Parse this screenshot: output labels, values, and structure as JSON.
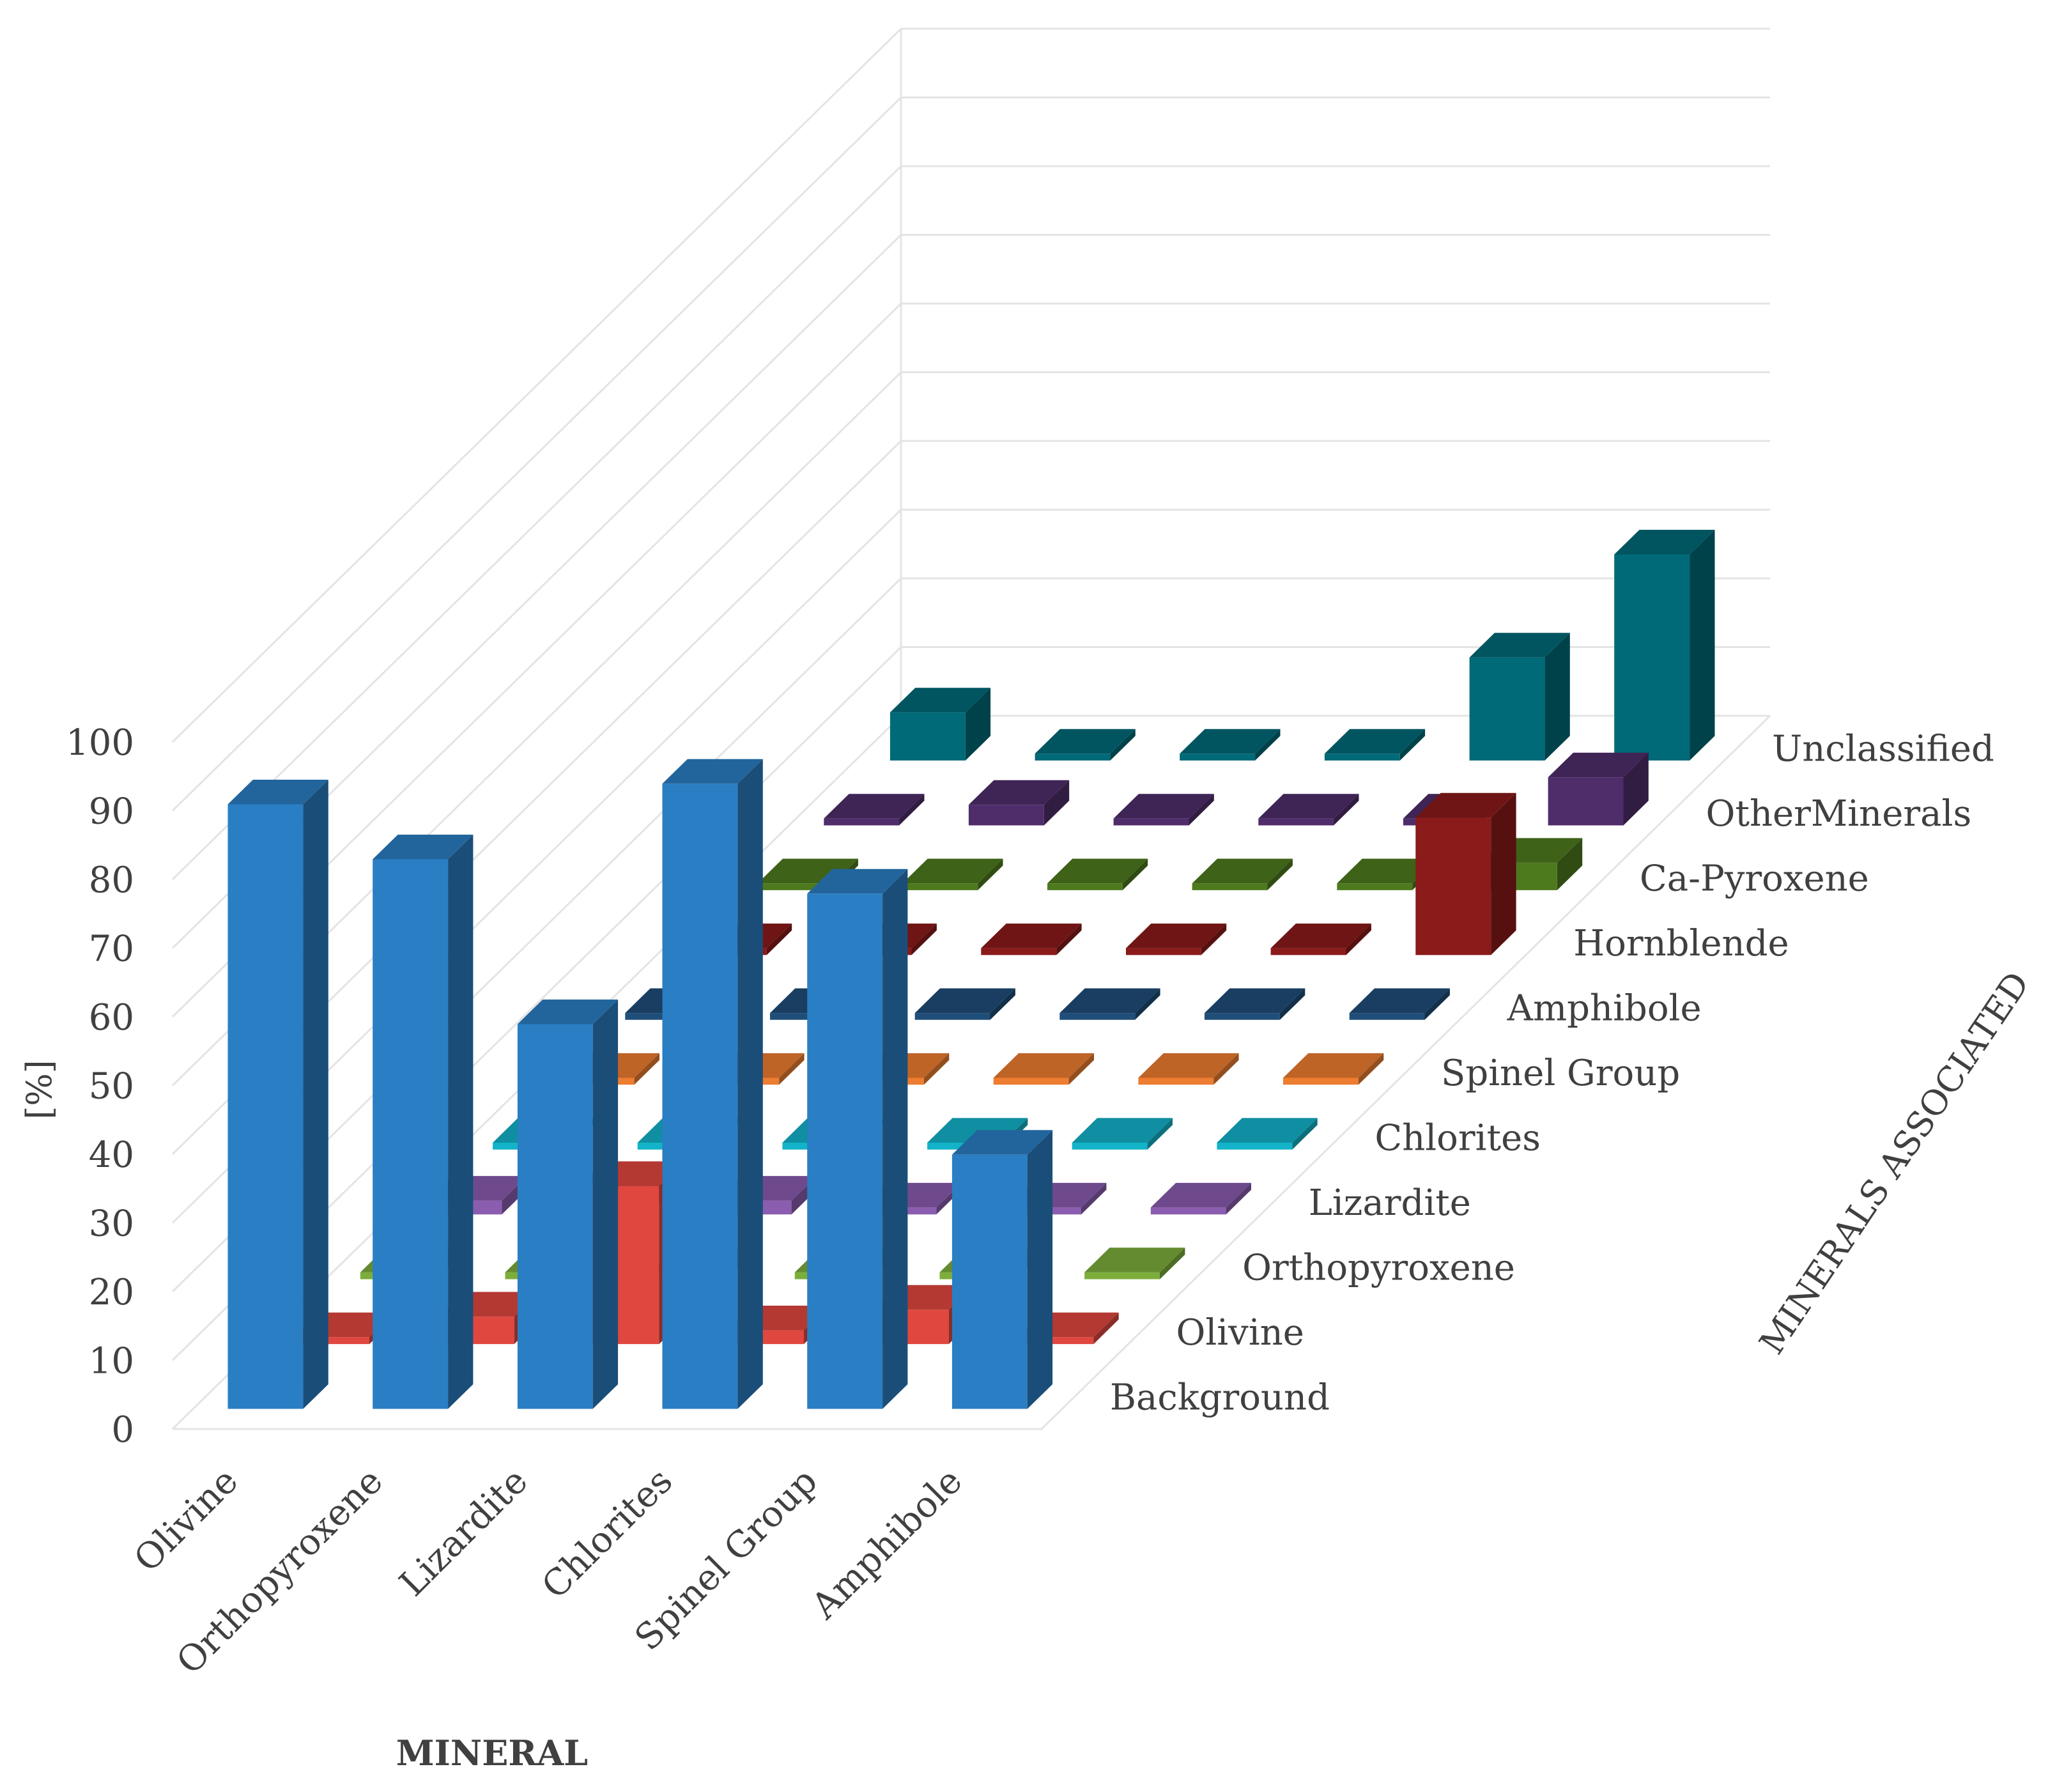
{
  "chart_data": {
    "type": "bar",
    "categories": [
      "Olivine",
      "Orthopyroxene",
      "Lizardite",
      "Chlorites",
      "Spinel Group",
      "Amphibole"
    ],
    "series": [
      {
        "name": "Background",
        "color": "#2A7EC3",
        "values": [
          88,
          80,
          56,
          91,
          75,
          37
        ]
      },
      {
        "name": "Olivine",
        "color": "#E0473F",
        "values": [
          1,
          4,
          23,
          2,
          5,
          1
        ]
      },
      {
        "name": "Orthopyroxene",
        "color": "#7DAE3C",
        "values": [
          1,
          1,
          1,
          1,
          1,
          1
        ]
      },
      {
        "name": "Lizardite",
        "color": "#8A5DB0",
        "values": [
          2,
          3,
          2,
          1,
          1,
          1
        ]
      },
      {
        "name": "Chlorites",
        "color": "#13B3C9",
        "values": [
          1,
          1,
          1,
          1,
          1,
          1
        ]
      },
      {
        "name": "Spinel Group",
        "color": "#ED7D31",
        "values": [
          1,
          1,
          1,
          1,
          1,
          1
        ]
      },
      {
        "name": "Amphibole",
        "color": "#1F4E79",
        "values": [
          1,
          1,
          1,
          1,
          1,
          1
        ]
      },
      {
        "name": "Hornblende",
        "color": "#8B1A1A",
        "values": [
          1,
          1,
          1,
          1,
          1,
          20
        ]
      },
      {
        "name": "Ca-Pyroxene",
        "color": "#4E7A1E",
        "values": [
          1,
          1,
          1,
          1,
          1,
          4
        ]
      },
      {
        "name": "OtherMinerals",
        "color": "#4F2D6B",
        "values": [
          1,
          3,
          1,
          1,
          1,
          7
        ]
      },
      {
        "name": "Unclassified",
        "color": "#006A78",
        "values": [
          7,
          1,
          1,
          1,
          15,
          30
        ]
      }
    ],
    "y_ticks": [
      "0",
      "10",
      "20",
      "30",
      "40",
      "50",
      "60",
      "70",
      "80",
      "90",
      "100"
    ],
    "ylim": [
      0,
      100
    ],
    "ylabel": "[%]",
    "xlabel": "MINERAL",
    "zlabel": "MINERALS ASSOCIATED",
    "grid": true
  }
}
